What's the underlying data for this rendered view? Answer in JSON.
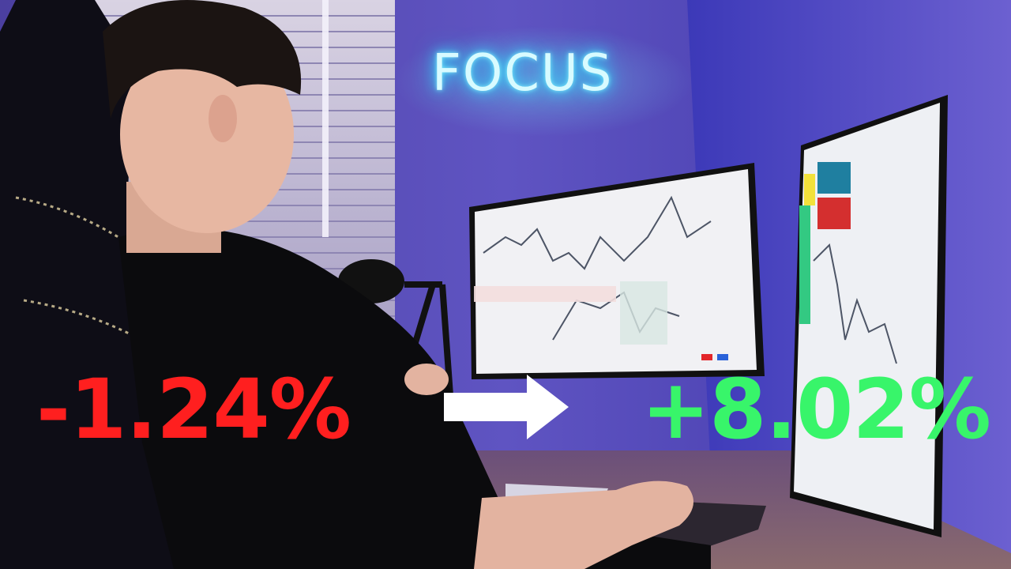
{
  "neon_sign": {
    "text": "FOCUS"
  },
  "before": {
    "value": "-1.24%",
    "color": "#ff1f1f"
  },
  "after": {
    "value": "+8.02%",
    "color": "#38f56a"
  },
  "colors": {
    "wall": "#3a2f8a",
    "neon": "#7ef3ff",
    "arrow": "#ffffff"
  },
  "icons": {
    "arrow": "right-arrow-icon"
  }
}
